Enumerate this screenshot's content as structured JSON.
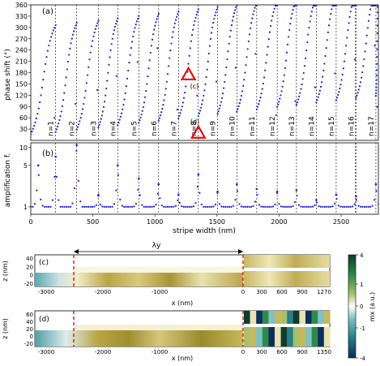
{
  "chart_data": [
    {
      "panel": "(a)",
      "type": "scatter",
      "ylabel": "phase shift (°)",
      "xlim": [
        0,
        2800
      ],
      "ylim": [
        0,
        360
      ],
      "yticks": [
        30,
        60,
        90,
        120,
        150,
        180,
        210,
        240,
        270,
        300,
        330,
        360
      ],
      "resonances": [
        {
          "label": "n=1",
          "x": 200
        },
        {
          "label": "n=2",
          "x": 370
        },
        {
          "label": "n=3",
          "x": 545
        },
        {
          "label": "n=4",
          "x": 700
        },
        {
          "label": "n=5",
          "x": 870
        },
        {
          "label": "n=6",
          "x": 1030
        },
        {
          "label": "n=7",
          "x": 1190
        },
        {
          "label": "n=8",
          "x": 1350
        },
        {
          "label": "n=9",
          "x": 1505
        },
        {
          "label": "n=10",
          "x": 1660
        },
        {
          "label": "n=11",
          "x": 1820
        },
        {
          "label": "n=12",
          "x": 1985
        },
        {
          "label": "n=13",
          "x": 2140
        },
        {
          "label": "n=14",
          "x": 2300
        },
        {
          "label": "n=15",
          "x": 2460
        },
        {
          "label": "n=16",
          "x": 2620
        },
        {
          "label": "n=17",
          "x": 2780
        }
      ],
      "marker_c": {
        "label": "(c)",
        "x": 1270,
        "y": 175
      },
      "marker_d": {
        "label": "(d)",
        "x": 1350,
        "y": 20
      },
      "red_line_x": 2615,
      "series_color": "#2020d0",
      "marker_color": "#e01010"
    },
    {
      "panel": "(b)",
      "type": "scatter",
      "xlabel": "stripe width (nm)",
      "ylabel": "amplification f.",
      "xlim": [
        0,
        2800
      ],
      "xticks": [
        0,
        500,
        1000,
        1500,
        2000,
        2500
      ],
      "yscale": "log",
      "yticks": [
        1,
        5,
        10
      ],
      "ylim": [
        0.75,
        12
      ],
      "peaks": [
        {
          "x": 60,
          "y": 5
        },
        {
          "x": 200,
          "y": 7
        },
        {
          "x": 370,
          "y": 11
        },
        {
          "x": 545,
          "y": 1.6
        },
        {
          "x": 700,
          "y": 5
        },
        {
          "x": 870,
          "y": 3
        },
        {
          "x": 1030,
          "y": 2.4
        },
        {
          "x": 1190,
          "y": 1.6
        },
        {
          "x": 1350,
          "y": 3.5
        },
        {
          "x": 1505,
          "y": 1.8
        },
        {
          "x": 1660,
          "y": 2.4
        },
        {
          "x": 1820,
          "y": 2
        },
        {
          "x": 1985,
          "y": 1.8
        },
        {
          "x": 2140,
          "y": 1.9
        },
        {
          "x": 2300,
          "y": 1.3
        },
        {
          "x": 2460,
          "y": 1.6
        },
        {
          "x": 2620,
          "y": 1.5
        },
        {
          "x": 2780,
          "y": 2.4
        }
      ]
    },
    {
      "panel": "(c)",
      "type": "heatmap",
      "xlabel": "x (nm)",
      "ylabel": "z (nm)",
      "xticks_left": [
        "-3000",
        "-2000",
        "-1000",
        "0"
      ],
      "xticks_right": [
        "300",
        "600",
        "900",
        "1270"
      ],
      "yticks": [
        "40",
        "20",
        "0",
        "-20"
      ],
      "lambda_label": "λy",
      "dashed_x": [
        -2560,
        0
      ]
    },
    {
      "panel": "(d)",
      "type": "heatmap",
      "xlabel": "x (nm)",
      "ylabel": "z (nm)",
      "xticks_left": [
        "-3000",
        "-2000",
        "-1000",
        "0"
      ],
      "xticks_right": [
        "300",
        "600",
        "900",
        "1350"
      ],
      "yticks": [
        "60",
        "40",
        "20",
        "0",
        "-20"
      ],
      "dashed_x": [
        -2560,
        0
      ]
    },
    {
      "panel": "colorbar",
      "label": "mx (a.u.)",
      "ticks": [
        "4",
        "1",
        "0",
        "-1",
        "-4"
      ],
      "colors": [
        "#0c3d2a",
        "#2f8a4a",
        "#a8c26a",
        "#ffffff",
        "#7fc1c4",
        "#2b7f86",
        "#0b2f5c"
      ]
    }
  ]
}
